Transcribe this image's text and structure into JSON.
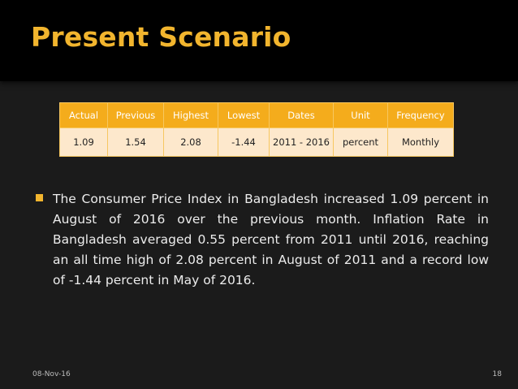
{
  "slide": {
    "title": "Present Scenario",
    "table": {
      "headers": [
        "Actual",
        "Previous",
        "Highest",
        "Lowest",
        "Dates",
        "Unit",
        "Frequency"
      ],
      "row": [
        "1.09",
        "1.54",
        "2.08",
        "-1.44",
        "2011 - 2016",
        "percent",
        "Monthly"
      ]
    },
    "bullet": "The Consumer Price Index in Bangladesh increased 1.09 percent in August of 2016 over the previous month. Inflation Rate in Bangladesh averaged 0.55 percent from 2011 until 2016, reaching an all time high of 2.08 percent in August of 2011 and a record low of -1.44 percent in May of 2016.",
    "footer": {
      "date": "08-Nov-16",
      "page": "18"
    }
  },
  "colors": {
    "background": "#1b1b1b",
    "title_bar": "#000000",
    "accent": "#f2b52e",
    "table_header": "#f4ac1c",
    "table_cell": "#fde8cc"
  }
}
